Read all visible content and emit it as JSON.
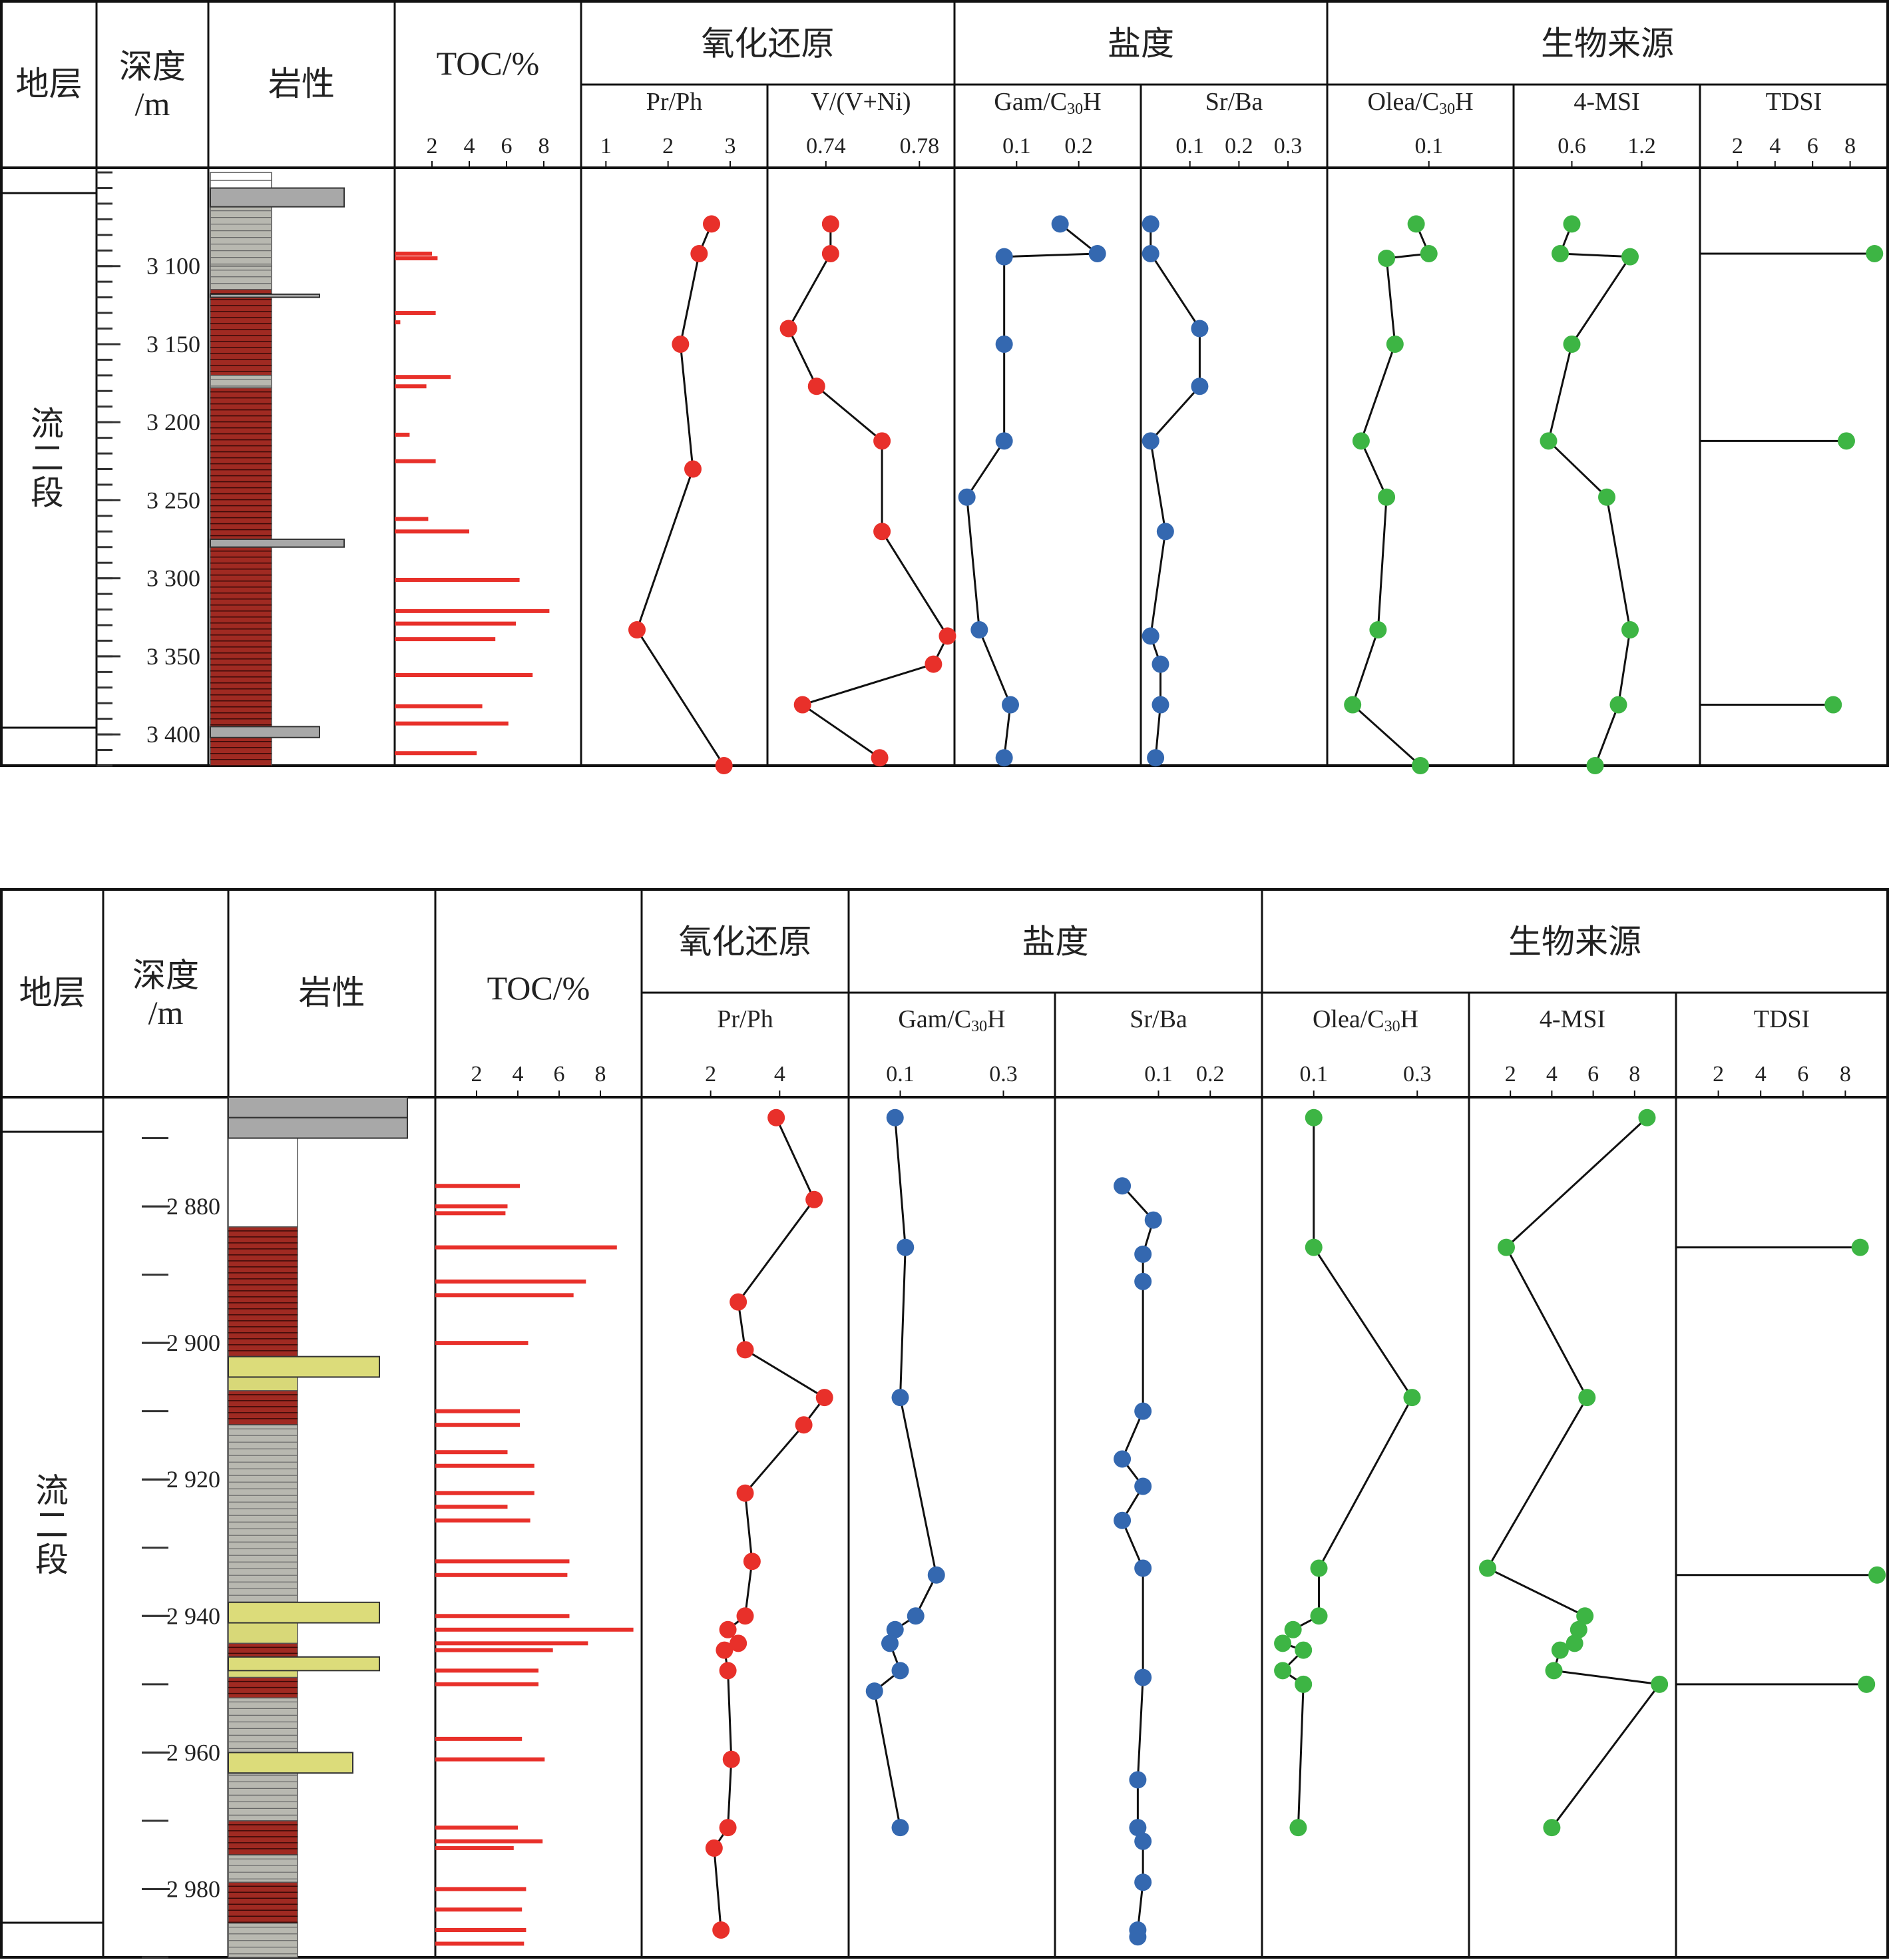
{
  "chart_data": [
    {
      "type": "well-log",
      "headers": {
        "stratum": "地层",
        "depth_l1": "深度",
        "depth_l2": "/m",
        "lithology": "岩性",
        "toc": "TOC/%",
        "redox": "氧化还原",
        "salinity": "盐度",
        "bio": "生物来源"
      },
      "formation_chars": [
        "流",
        "二",
        "段"
      ],
      "depth_labels": [
        "3 100",
        "3 150",
        "3 200",
        "3 250",
        "3 300",
        "3 350",
        "3 400"
      ],
      "depth_values": [
        3100,
        3150,
        3200,
        3250,
        3300,
        3350,
        3400
      ],
      "tracks": [
        {
          "label": "Pr/Ph",
          "ticks": [
            "1",
            "2",
            "3"
          ],
          "tickvals": [
            1,
            2,
            3
          ],
          "range": [
            0.6,
            3.6
          ],
          "color": "#e8302a",
          "series": [
            [
              3073,
              2.7
            ],
            [
              3092,
              2.5
            ],
            [
              3150,
              2.2
            ],
            [
              3230,
              2.4
            ],
            [
              3333,
              1.5
            ],
            [
              3420,
              2.9
            ]
          ]
        },
        {
          "label": "V/(V+Ni)",
          "ticks": [
            "0.74",
            "0.78"
          ],
          "tickvals": [
            0.74,
            0.78
          ],
          "range": [
            0.715,
            0.795
          ],
          "color": "#e8302a",
          "series": [
            [
              3073,
              0.742
            ],
            [
              3092,
              0.742
            ],
            [
              3140,
              0.724
            ],
            [
              3177,
              0.736
            ],
            [
              3212,
              0.764
            ],
            [
              3270,
              0.764
            ],
            [
              3337,
              0.792
            ],
            [
              3355,
              0.786
            ],
            [
              3381,
              0.73
            ],
            [
              3415,
              0.763
            ]
          ]
        },
        {
          "label": "Gam/C₃₀H",
          "ticks": [
            "0.1",
            "0.2"
          ],
          "tickvals": [
            0.1,
            0.2
          ],
          "range": [
            0,
            0.3
          ],
          "color": "#3468b0",
          "series": [
            [
              3073,
              0.17
            ],
            [
              3092,
              0.23
            ],
            [
              3094,
              0.08
            ],
            [
              3150,
              0.08
            ],
            [
              3212,
              0.08
            ],
            [
              3248,
              0.02
            ],
            [
              3333,
              0.04
            ],
            [
              3381,
              0.09
            ],
            [
              3415,
              0.08
            ]
          ]
        },
        {
          "label": "Sr/Ba",
          "ticks": [
            "0.1",
            "0.2",
            "0.3"
          ],
          "tickvals": [
            0.1,
            0.2,
            0.3
          ],
          "range": [
            0,
            0.38
          ],
          "color": "#3468b0",
          "series": [
            [
              3073,
              0.02
            ],
            [
              3092,
              0.02
            ],
            [
              3140,
              0.12
            ],
            [
              3177,
              0.12
            ],
            [
              3212,
              0.02
            ],
            [
              3270,
              0.05
            ],
            [
              3337,
              0.02
            ],
            [
              3355,
              0.04
            ],
            [
              3381,
              0.04
            ],
            [
              3415,
              0.03
            ]
          ]
        },
        {
          "label": "Olea/C₃₀H",
          "ticks": [
            "0.1"
          ],
          "tickvals": [
            0.1
          ],
          "range": [
            -0.02,
            0.2
          ],
          "color": "#3db544",
          "series": [
            [
              3073,
              0.085
            ],
            [
              3092,
              0.1
            ],
            [
              3095,
              0.05
            ],
            [
              3150,
              0.06
            ],
            [
              3212,
              0.02
            ],
            [
              3248,
              0.05
            ],
            [
              3333,
              0.04
            ],
            [
              3381,
              0.01
            ],
            [
              3420,
              0.09
            ]
          ]
        },
        {
          "label": "4-MSI",
          "ticks": [
            "0.6",
            "1.2"
          ],
          "tickvals": [
            0.6,
            1.2
          ],
          "range": [
            0.1,
            1.7
          ],
          "color": "#3db544",
          "series": [
            [
              3073,
              0.6
            ],
            [
              3092,
              0.5
            ],
            [
              3094,
              1.1
            ],
            [
              3150,
              0.6
            ],
            [
              3212,
              0.4
            ],
            [
              3248,
              0.9
            ],
            [
              3333,
              1.1
            ],
            [
              3381,
              1.0
            ],
            [
              3420,
              0.8
            ]
          ]
        },
        {
          "label": "TDSI",
          "ticks": [
            "2",
            "4",
            "6",
            "8"
          ],
          "tickvals": [
            2,
            4,
            6,
            8
          ],
          "range": [
            0,
            10
          ],
          "color": "#3db544",
          "bars": true,
          "series": [
            [
              3092,
              9.3
            ],
            [
              3212,
              7.8
            ],
            [
              3381,
              7.1
            ]
          ]
        }
      ],
      "toc": {
        "ticks": [
          "2",
          "4",
          "6",
          "8"
        ],
        "tickvals": [
          2,
          4,
          6,
          8
        ],
        "range": [
          0,
          10
        ],
        "values": [
          [
            3092,
            2.0
          ],
          [
            3095,
            2.3
          ],
          [
            3130,
            2.2
          ],
          [
            3136,
            0.3
          ],
          [
            3171,
            3.0
          ],
          [
            3177,
            1.7
          ],
          [
            3208,
            0.8
          ],
          [
            3225,
            2.2
          ],
          [
            3262,
            1.8
          ],
          [
            3270,
            4.0
          ],
          [
            3301,
            6.7
          ],
          [
            3321,
            8.3
          ],
          [
            3329,
            6.5
          ],
          [
            3339,
            5.4
          ],
          [
            3362,
            7.4
          ],
          [
            3382,
            4.7
          ],
          [
            3393,
            6.1
          ],
          [
            3412,
            4.4
          ]
        ]
      }
    },
    {
      "type": "well-log",
      "headers": {
        "stratum": "地层",
        "depth_l1": "深度",
        "depth_l2": "/m",
        "lithology": "岩性",
        "toc": "TOC/%",
        "redox": "氧化还原",
        "salinity": "盐度",
        "bio": "生物来源"
      },
      "formation_chars": [
        "流",
        "二",
        "段"
      ],
      "depth_labels": [
        "2 880",
        "2 900",
        "2 920",
        "2 940",
        "2 960",
        "2 980"
      ],
      "depth_values": [
        2880,
        2900,
        2920,
        2940,
        2960,
        2980
      ],
      "tracks": [
        {
          "label": "Pr/Ph",
          "ticks": [
            "2",
            "4"
          ],
          "tickvals": [
            2,
            4
          ],
          "range": [
            0,
            6
          ],
          "color": "#e8302a",
          "series": [
            [
              2867,
              3.9
            ],
            [
              2879,
              5.0
            ],
            [
              2886,
              null
            ],
            [
              2894,
              2.8
            ],
            [
              2901,
              3.0
            ],
            [
              2904,
              null
            ],
            [
              2908,
              5.3
            ],
            [
              2912,
              4.7
            ],
            [
              2922,
              3.0
            ],
            [
              2932,
              3.2
            ],
            [
              2940,
              3.0
            ],
            [
              2942,
              2.5
            ],
            [
              2944,
              2.8
            ],
            [
              2945,
              2.4
            ],
            [
              2948,
              2.5
            ],
            [
              2961,
              2.6
            ],
            [
              2971,
              2.5
            ],
            [
              2974,
              2.1
            ],
            [
              2986,
              2.3
            ]
          ]
        },
        {
          "label": "Gam/C₃₀H",
          "ticks": [
            "0.1",
            "0.3"
          ],
          "tickvals": [
            0.1,
            0.3
          ],
          "range": [
            0,
            0.4
          ],
          "color": "#3468b0",
          "series": [
            [
              2867,
              0.09
            ],
            [
              2886,
              0.11
            ],
            [
              2908,
              0.1
            ],
            [
              2934,
              0.17
            ],
            [
              2940,
              0.13
            ],
            [
              2942,
              0.09
            ],
            [
              2944,
              0.08
            ],
            [
              2948,
              0.1
            ],
            [
              2951,
              0.05
            ],
            [
              2971,
              0.1
            ]
          ]
        },
        {
          "label": "Sr/Ba",
          "ticks": [
            "0.1",
            "0.2"
          ],
          "tickvals": [
            0.1,
            0.2
          ],
          "range": [
            -0.1,
            0.3
          ],
          "color": "#3468b0",
          "series": [
            [
              2877,
              0.03
            ],
            [
              2882,
              0.09
            ],
            [
              2887,
              0.07
            ],
            [
              2891,
              0.07
            ],
            [
              2910,
              0.07
            ],
            [
              2917,
              0.03
            ],
            [
              2921,
              0.07
            ],
            [
              2926,
              0.03
            ],
            [
              2933,
              0.07
            ],
            [
              2949,
              0.07
            ],
            [
              2964,
              0.06
            ],
            [
              2971,
              0.06
            ],
            [
              2973,
              0.07
            ],
            [
              2979,
              0.07
            ],
            [
              2986,
              0.06
            ],
            [
              2987,
              0.06
            ]
          ]
        },
        {
          "label": "Olea/C₃₀H",
          "ticks": [
            "0.1",
            "0.3"
          ],
          "tickvals": [
            0.1,
            0.3
          ],
          "range": [
            0,
            0.4
          ],
          "color": "#3db544",
          "series": [
            [
              2867,
              0.1
            ],
            [
              2886,
              0.1
            ],
            [
              2908,
              0.29
            ],
            [
              2933,
              0.11
            ],
            [
              2940,
              0.11
            ],
            [
              2942,
              0.06
            ],
            [
              2944,
              0.04
            ],
            [
              2945,
              0.08
            ],
            [
              2948,
              0.04
            ],
            [
              2950,
              0.08
            ],
            [
              2971,
              0.07
            ]
          ]
        },
        {
          "label": "4-MSI",
          "ticks": [
            "2",
            "4",
            "6",
            "8"
          ],
          "tickvals": [
            2,
            4,
            6,
            8
          ],
          "range": [
            0,
            10
          ],
          "color": "#3db544",
          "series": [
            [
              2867,
              8.6
            ],
            [
              2886,
              1.8
            ],
            [
              2908,
              5.7
            ],
            [
              2933,
              0.9
            ],
            [
              2940,
              5.6
            ],
            [
              2942,
              5.3
            ],
            [
              2944,
              5.1
            ],
            [
              2945,
              4.4
            ],
            [
              2948,
              4.1
            ],
            [
              2950,
              9.2
            ],
            [
              2971,
              4.0
            ]
          ]
        },
        {
          "label": "TDSI",
          "ticks": [
            "2",
            "4",
            "6",
            "8"
          ],
          "tickvals": [
            2,
            4,
            6,
            8
          ],
          "range": [
            0,
            10
          ],
          "color": "#3db544",
          "bars": true,
          "series": [
            [
              2886,
              8.7
            ],
            [
              2934,
              9.5
            ],
            [
              2950,
              9.0
            ]
          ]
        }
      ],
      "toc": {
        "ticks": [
          "2",
          "4",
          "6",
          "8"
        ],
        "tickvals": [
          2,
          4,
          6,
          8
        ],
        "range": [
          0,
          10
        ],
        "values": [
          [
            2877,
            4.1
          ],
          [
            2880,
            3.5
          ],
          [
            2881,
            3.4
          ],
          [
            2886,
            8.8
          ],
          [
            2891,
            7.3
          ],
          [
            2893,
            6.7
          ],
          [
            2900,
            4.5
          ],
          [
            2910,
            4.1
          ],
          [
            2912,
            4.1
          ],
          [
            2916,
            3.5
          ],
          [
            2918,
            4.8
          ],
          [
            2922,
            4.8
          ],
          [
            2924,
            3.5
          ],
          [
            2926,
            4.6
          ],
          [
            2932,
            6.5
          ],
          [
            2934,
            6.4
          ],
          [
            2940,
            6.5
          ],
          [
            2942,
            9.6
          ],
          [
            2944,
            7.4
          ],
          [
            2945,
            5.7
          ],
          [
            2948,
            5.0
          ],
          [
            2950,
            5.0
          ],
          [
            2958,
            4.2
          ],
          [
            2961,
            5.3
          ],
          [
            2971,
            4.0
          ],
          [
            2973,
            5.2
          ],
          [
            2974,
            3.8
          ],
          [
            2980,
            4.4
          ],
          [
            2983,
            4.2
          ],
          [
            2986,
            4.4
          ],
          [
            2988,
            4.3
          ]
        ]
      }
    }
  ]
}
